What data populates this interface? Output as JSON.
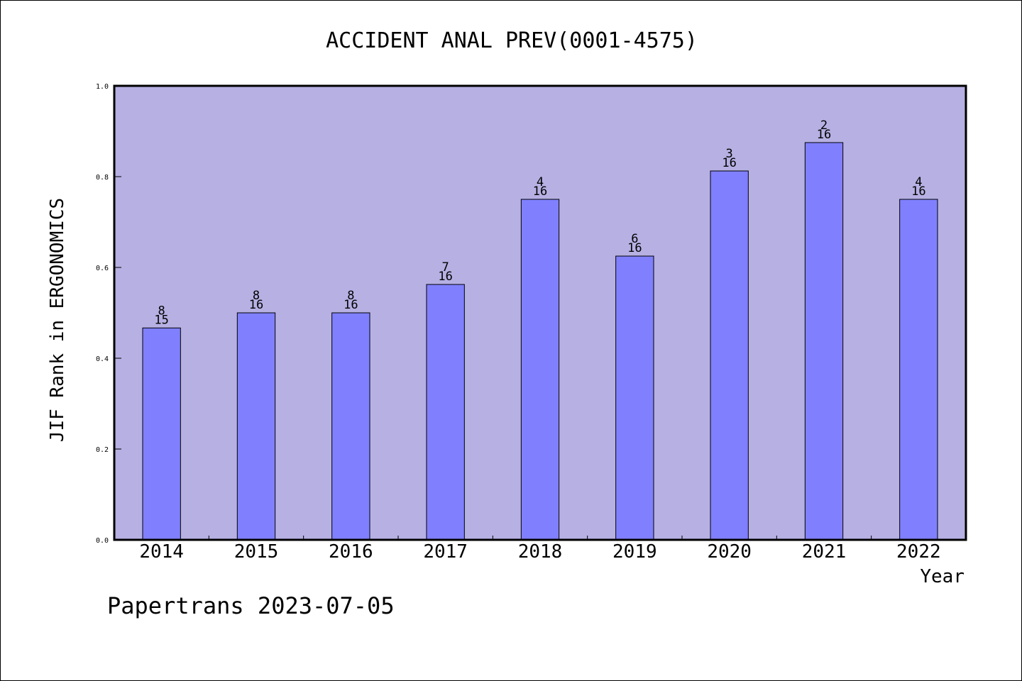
{
  "chart_data": {
    "type": "bar",
    "title": "ACCIDENT ANAL PREV(0001-4575)",
    "xlabel": "Year",
    "ylabel": "JIF Rank in ERGONOMICS",
    "ylim": [
      0,
      1.0
    ],
    "yticks": [
      "0.0",
      "0.2",
      "0.4",
      "0.6",
      "0.8",
      "1.0"
    ],
    "categories": [
      "2014",
      "2015",
      "2016",
      "2017",
      "2018",
      "2019",
      "2020",
      "2021",
      "2022"
    ],
    "values": [
      0.4667,
      0.5,
      0.5,
      0.5625,
      0.75,
      0.625,
      0.8125,
      0.875,
      0.75
    ],
    "labels": [
      {
        "top": "8",
        "bottom": "15"
      },
      {
        "top": "8",
        "bottom": "16"
      },
      {
        "top": "8",
        "bottom": "16"
      },
      {
        "top": "7",
        "bottom": "16"
      },
      {
        "top": "4",
        "bottom": "16"
      },
      {
        "top": "6",
        "bottom": "16"
      },
      {
        "top": "3",
        "bottom": "16"
      },
      {
        "top": "2",
        "bottom": "16"
      },
      {
        "top": "4",
        "bottom": "16"
      }
    ],
    "grid": false,
    "colors": {
      "plot_bg": "#b6b0e3",
      "bar": "#8080ff",
      "axis": "#000000"
    }
  },
  "footer": "Papertrans 2023-07-05"
}
